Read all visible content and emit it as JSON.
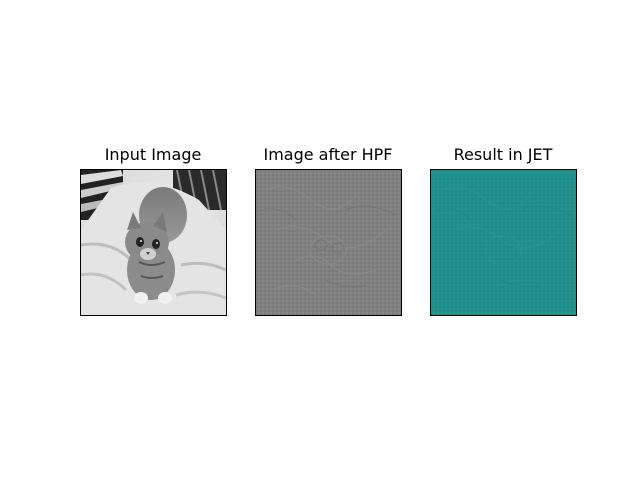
{
  "figure": {
    "panels": [
      {
        "title": "Input Image",
        "colormap": "gray"
      },
      {
        "title": "Image after HPF",
        "colormap": "gray"
      },
      {
        "title": "Result in JET",
        "colormap": "jet"
      }
    ]
  },
  "colors": {
    "hpf_gray": "#808080",
    "jet_teal": "#21908c",
    "frame": "#000000"
  }
}
